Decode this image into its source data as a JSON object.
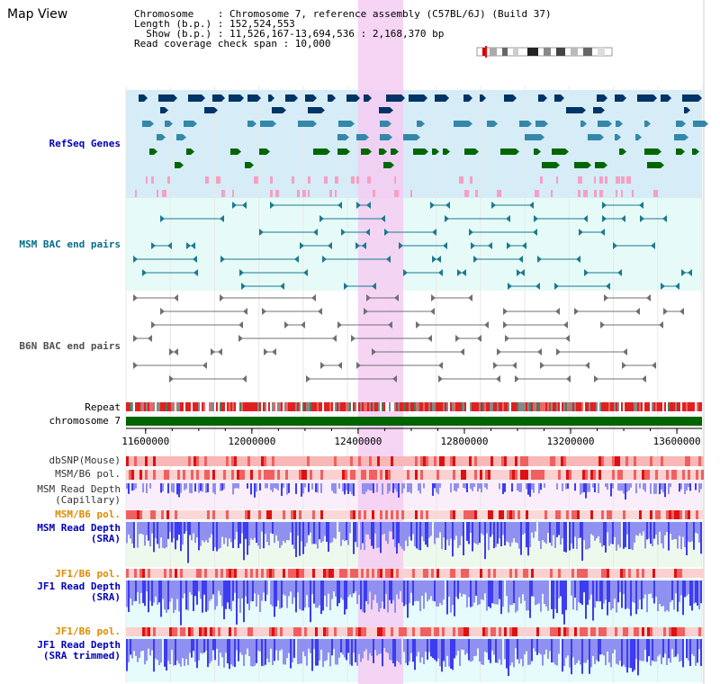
{
  "view": {
    "title": "Map View",
    "info_lines": [
      "Chromosome    : Chromosome 7, reference assembly (C57BL/6J) (Build 37)",
      "Length (b.p.) : 152,524,553",
      "  Show (b.p.) : 11,526,167-13,694,536 : 2,168,370 bp",
      "Read coverage check span : 10,000"
    ]
  },
  "tracks": {
    "refseq": "RefSeq Genes",
    "msm_bac": "MSM BAC end pairs",
    "b6n_bac": "B6N BAC end pairs",
    "repeat": "Repeat",
    "chromosome": "chromosome 7",
    "dbsnp": "dbSNP(Mouse)",
    "msm_pol": "MSM/B6 pol.",
    "msm_depth_cap": "MSM Read Depth\n(Capillary)",
    "msm_pol2": "MSM/B6 pol.",
    "msm_depth_sra": "MSM Read Depth\n(SRA)",
    "jf1_pol": "JF1/B6 pol.",
    "jf1_depth_sra": "JF1 Read Depth\n(SRA)",
    "jf1_pol2": "JF1/B6 pol.",
    "jf1_depth_trim": "JF1 Read Depth\n(SRA trimmed)"
  },
  "axis": {
    "tick_labels": [
      "11600000",
      "12000000",
      "12400000",
      "12800000",
      "13200000",
      "13600000"
    ],
    "tick_values": [
      11600000,
      12000000,
      12400000,
      12800000,
      13200000,
      13600000
    ],
    "range": [
      11526167,
      13694536
    ]
  },
  "highlight": {
    "start": 12400000,
    "end": 12570000
  },
  "colors": {
    "refseq_bg": "#d6ecf6",
    "msm_bg": "#e6fbf8",
    "highlight": "#f4ccf2",
    "chromosome": "#006400",
    "depth_blue": "#3c3cf0",
    "pol_red": "#e00000"
  }
}
